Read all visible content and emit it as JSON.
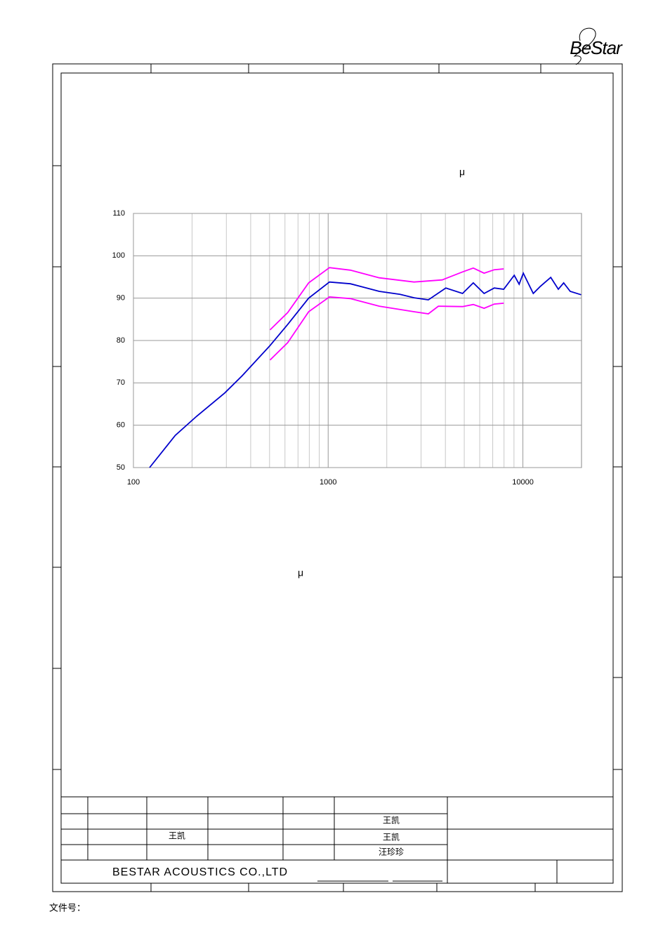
{
  "logo": "BeStar",
  "mu_labels": [
    "μ",
    "μ"
  ],
  "chart_data": {
    "type": "line",
    "log_x": true,
    "grid": true,
    "xlim": [
      100,
      20000
    ],
    "ylim": [
      50,
      110
    ],
    "xticks": [
      100,
      1000,
      10000
    ],
    "xminorticks": [
      200,
      300,
      400,
      500,
      600,
      700,
      800,
      900,
      2000,
      3000,
      4000,
      5000,
      6000,
      7000,
      8000,
      9000
    ],
    "yticks": [
      50,
      60,
      70,
      80,
      90,
      100,
      110
    ],
    "series": [
      {
        "color": "#0000cc",
        "x": [
          121,
          164,
          211,
          294,
          362,
          503,
          620,
          794,
          1015,
          1300,
          1830,
          2340,
          2760,
          3270,
          4020,
          4900,
          5560,
          6320,
          7130,
          7970,
          9030,
          9570,
          10050,
          11300,
          12300,
          13900,
          15200,
          16200,
          17500,
          19900
        ],
        "values": [
          50,
          57.6,
          62.1,
          67.6,
          71.7,
          78.8,
          83.8,
          90,
          93.8,
          93.4,
          91.6,
          90.9,
          90.1,
          89.6,
          92.4,
          91.1,
          93.6,
          91.1,
          92.4,
          92.1,
          95.4,
          93.3,
          95.9,
          91.1,
          92.8,
          94.9,
          92.1,
          93.6,
          91.6,
          90.8
        ]
      },
      {
        "color": "#ff00ff",
        "x": [
          503,
          620,
          794,
          1015,
          1300,
          1830,
          2760,
          3850,
          4900,
          5560,
          6320,
          7130,
          7970
        ],
        "values": [
          82.5,
          86.6,
          93.6,
          97.2,
          96.6,
          94.8,
          93.8,
          94.3,
          96.2,
          97.1,
          95.9,
          96.7,
          96.9
        ]
      },
      {
        "color": "#ff00ff",
        "x": [
          503,
          620,
          794,
          1015,
          1300,
          1830,
          2760,
          3270,
          3680,
          4900,
          5560,
          6320,
          7130,
          7970
        ],
        "values": [
          75.4,
          79.5,
          86.8,
          90.3,
          89.9,
          88.1,
          86.8,
          86.3,
          88.1,
          88.0,
          88.5,
          87.6,
          88.6,
          88.8
        ]
      }
    ]
  },
  "title_block": {
    "approved_by": "王凯",
    "drawn_by": "王凯",
    "checked_by": "王凯",
    "designed_by": "汪珍珍",
    "company": "BESTAR ACOUSTICS CO.,LTD"
  },
  "footer": "文件号："
}
